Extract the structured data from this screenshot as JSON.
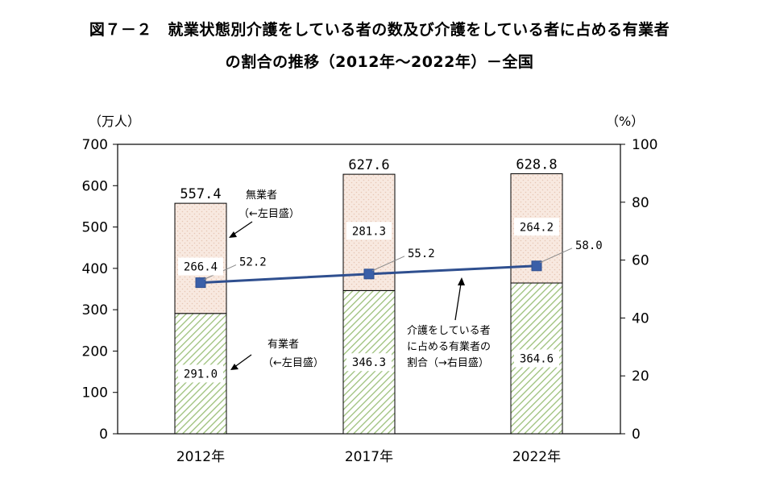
{
  "title": {
    "line1": "図７－２　就業状態別介護をしている者の数及び介護をしている者に占める有業者",
    "line2": "の割合の推移（2012年～2022年）－全国"
  },
  "axes": {
    "left_unit": "（万人）",
    "right_unit": "（%）",
    "left_ticks": [
      "0",
      "100",
      "200",
      "300",
      "400",
      "500",
      "600",
      "700"
    ],
    "right_ticks": [
      "0",
      "20",
      "40",
      "60",
      "80",
      "100"
    ]
  },
  "annotations": {
    "unemployed_label_1": "無業者",
    "unemployed_label_2": "（←左目盛）",
    "employed_label_1": "有業者",
    "employed_label_2": "（←左目盛）",
    "ratio_label_1": "介護をしている者",
    "ratio_label_2": "に占める有業者の",
    "ratio_label_3": "割合（→右目盛）"
  },
  "colors": {
    "unemployed_fill": "#f8e9e0",
    "unemployed_dots": "#e6c6b4",
    "employed_stripe": "#9cc07a",
    "line": "#2f4f8f",
    "marker": "#3a5fa8"
  },
  "chart_data": {
    "type": "bar",
    "stacked": true,
    "categories": [
      "2012年",
      "2017年",
      "2022年"
    ],
    "series": [
      {
        "name": "有業者",
        "axis": "left",
        "values": [
          291.0,
          346.3,
          364.6
        ],
        "labels": [
          "291.0",
          "346.3",
          "364.6"
        ]
      },
      {
        "name": "無業者",
        "axis": "left",
        "values": [
          266.4,
          281.3,
          264.2
        ],
        "labels": [
          "266.4",
          "281.3",
          "264.2"
        ]
      },
      {
        "name": "介護をしている者に占める有業者の割合",
        "axis": "right",
        "type": "line",
        "values": [
          52.2,
          55.2,
          58.0
        ],
        "labels": [
          "52.2",
          "55.2",
          "58.0"
        ]
      }
    ],
    "totals": [
      "557.4",
      "627.6",
      "628.8"
    ],
    "ylim_left": [
      0,
      700
    ],
    "ylim_right": [
      0,
      100
    ],
    "ylabel_left": "（万人）",
    "ylabel_right": "（%）",
    "grid": false,
    "legend": "none"
  }
}
